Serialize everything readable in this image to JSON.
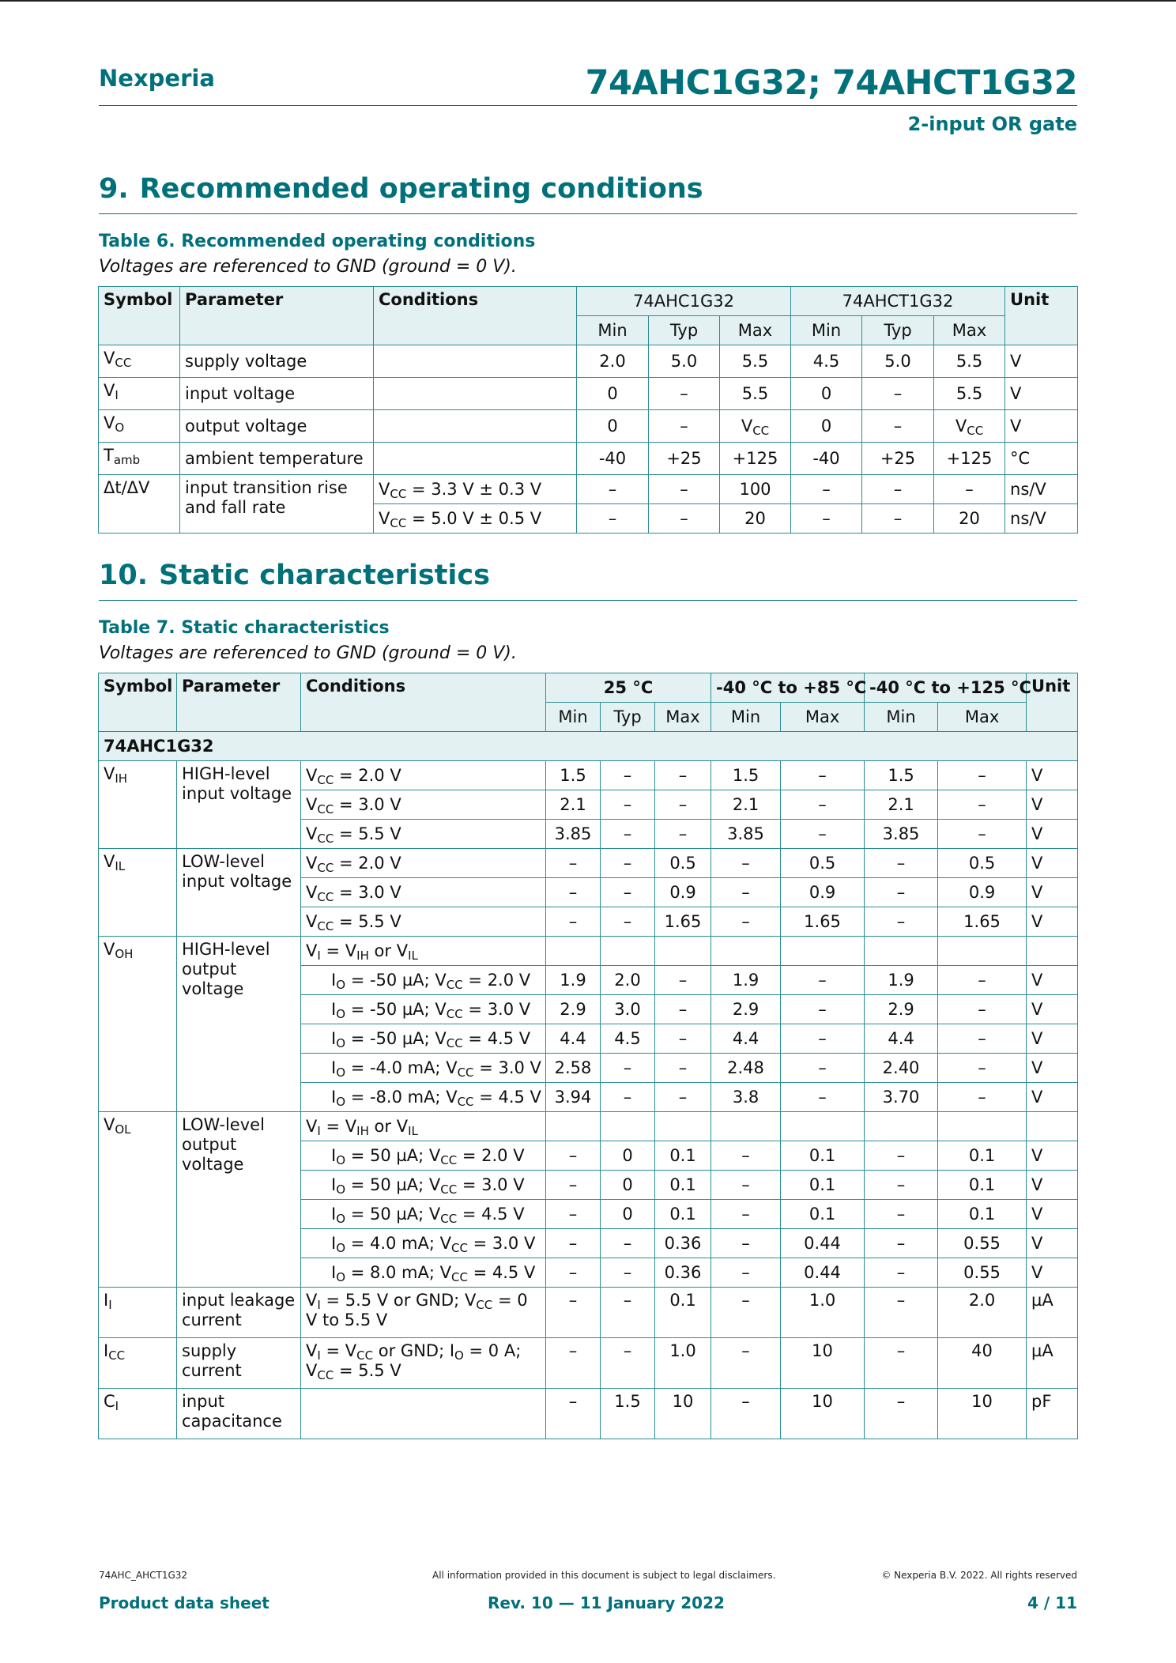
{
  "header": {
    "brand": "Nexperia",
    "title": "74AHC1G32; 74AHCT1G32",
    "subtitle": "2-input OR gate"
  },
  "section9": {
    "number": "9.",
    "title": "Recommended operating conditions",
    "caption": "Table 6. Recommended operating conditions",
    "note": "Voltages are referenced to GND (ground = 0 V).",
    "head": {
      "symbol": "Symbol",
      "parameter": "Parameter",
      "conditions": "Conditions",
      "grp1": "74AHC1G32",
      "grp2": "74AHCT1G32",
      "unit": "Unit",
      "min": "Min",
      "typ": "Typ",
      "max": "Max"
    },
    "rows": [
      {
        "sym": "V",
        "sub": "CC",
        "param": "supply voltage",
        "v": [
          "2.0",
          "5.0",
          "5.5",
          "4.5",
          "5.0",
          "5.5"
        ],
        "unit": "V"
      },
      {
        "sym": "V",
        "sub": "I",
        "param": "input voltage",
        "v": [
          "0",
          "–",
          "5.5",
          "0",
          "–",
          "5.5"
        ],
        "unit": "V"
      },
      {
        "sym": "V",
        "sub": "O",
        "param": "output voltage",
        "v": [
          "0",
          "–",
          "V_CC",
          "0",
          "–",
          "V_CC"
        ],
        "unit": "V"
      },
      {
        "sym": "T",
        "sub": "amb",
        "param": "ambient temperature",
        "v": [
          "-40",
          "+25",
          "+125",
          "-40",
          "+25",
          "+125"
        ],
        "unit": "°C"
      },
      {
        "sym": "Δt/ΔV",
        "sub": "",
        "param": "input transition rise and fall rate",
        "cond": "V_CC = 3.3 V ± 0.3 V",
        "v": [
          "–",
          "–",
          "100",
          "–",
          "–",
          "–"
        ],
        "unit": "ns/V"
      },
      {
        "cond": "V_CC = 5.0 V ± 0.5 V",
        "v": [
          "–",
          "–",
          "20",
          "–",
          "–",
          "20"
        ],
        "unit": "ns/V"
      }
    ]
  },
  "section10": {
    "number": "10.",
    "title": "Static characteristics",
    "caption": "Table 7. Static characteristics",
    "note": "Voltages are referenced to GND (ground = 0 V).",
    "head": {
      "symbol": "Symbol",
      "parameter": "Parameter",
      "conditions": "Conditions",
      "grp1": "25 °C",
      "grp2": "-40 °C to +85 °C",
      "grp3": "-40 °C to +125 °C",
      "unit": "Unit",
      "min": "Min",
      "typ": "Typ",
      "max": "Max"
    },
    "group_label": "74AHC1G32",
    "rows": [
      {
        "sym": "V_IH",
        "param": "HIGH-level input voltage",
        "cond": "V_CC = 2.0 V",
        "v": [
          "1.5",
          "–",
          "–",
          "1.5",
          "–",
          "1.5",
          "–"
        ],
        "unit": "V"
      },
      {
        "cond": "V_CC = 3.0 V",
        "v": [
          "2.1",
          "–",
          "–",
          "2.1",
          "–",
          "2.1",
          "–"
        ],
        "unit": "V"
      },
      {
        "cond": "V_CC = 5.5 V",
        "v": [
          "3.85",
          "–",
          "–",
          "3.85",
          "–",
          "3.85",
          "–"
        ],
        "unit": "V"
      },
      {
        "sym": "V_IL",
        "param": "LOW-level input voltage",
        "cond": "V_CC = 2.0 V",
        "v": [
          "–",
          "–",
          "0.5",
          "–",
          "0.5",
          "–",
          "0.5"
        ],
        "unit": "V"
      },
      {
        "cond": "V_CC = 3.0 V",
        "v": [
          "–",
          "–",
          "0.9",
          "–",
          "0.9",
          "–",
          "0.9"
        ],
        "unit": "V"
      },
      {
        "cond": "V_CC = 5.5 V",
        "v": [
          "–",
          "–",
          "1.65",
          "–",
          "1.65",
          "–",
          "1.65"
        ],
        "unit": "V"
      },
      {
        "sym": "V_OH",
        "param": "HIGH-level output voltage",
        "cond": "V_I = V_IH or V_IL",
        "v": [
          "",
          "",
          "",
          "",
          "",
          "",
          ""
        ],
        "unit": ""
      },
      {
        "cond": "I_O = -50 µA; V_CC = 2.0 V",
        "v": [
          "1.9",
          "2.0",
          "–",
          "1.9",
          "–",
          "1.9",
          "–"
        ],
        "unit": "V"
      },
      {
        "cond": "I_O = -50 µA; V_CC = 3.0 V",
        "v": [
          "2.9",
          "3.0",
          "–",
          "2.9",
          "–",
          "2.9",
          "–"
        ],
        "unit": "V"
      },
      {
        "cond": "I_O = -50 µA; V_CC = 4.5 V",
        "v": [
          "4.4",
          "4.5",
          "–",
          "4.4",
          "–",
          "4.4",
          "–"
        ],
        "unit": "V"
      },
      {
        "cond": "I_O = -4.0 mA; V_CC = 3.0 V",
        "v": [
          "2.58",
          "–",
          "–",
          "2.48",
          "–",
          "2.40",
          "–"
        ],
        "unit": "V"
      },
      {
        "cond": "I_O = -8.0 mA; V_CC = 4.5 V",
        "v": [
          "3.94",
          "–",
          "–",
          "3.8",
          "–",
          "3.70",
          "–"
        ],
        "unit": "V"
      },
      {
        "sym": "V_OL",
        "param": "LOW-level output voltage",
        "cond": "V_I = V_IH or V_IL",
        "v": [
          "",
          "",
          "",
          "",
          "",
          "",
          ""
        ],
        "unit": ""
      },
      {
        "cond": "I_O = 50 µA; V_CC = 2.0 V",
        "v": [
          "–",
          "0",
          "0.1",
          "–",
          "0.1",
          "–",
          "0.1"
        ],
        "unit": "V"
      },
      {
        "cond": "I_O = 50 µA; V_CC = 3.0 V",
        "v": [
          "–",
          "0",
          "0.1",
          "–",
          "0.1",
          "–",
          "0.1"
        ],
        "unit": "V"
      },
      {
        "cond": "I_O = 50 µA; V_CC = 4.5 V",
        "v": [
          "–",
          "0",
          "0.1",
          "–",
          "0.1",
          "–",
          "0.1"
        ],
        "unit": "V"
      },
      {
        "cond": "I_O = 4.0 mA; V_CC = 3.0 V",
        "v": [
          "–",
          "–",
          "0.36",
          "–",
          "0.44",
          "–",
          "0.55"
        ],
        "unit": "V"
      },
      {
        "cond": "I_O = 8.0 mA; V_CC = 4.5 V",
        "v": [
          "–",
          "–",
          "0.36",
          "–",
          "0.44",
          "–",
          "0.55"
        ],
        "unit": "V"
      },
      {
        "sym": "I_I",
        "param": "input leakage current",
        "cond": "V_I = 5.5 V or GND; V_CC = 0 V to 5.5 V",
        "v": [
          "–",
          "–",
          "0.1",
          "–",
          "1.0",
          "–",
          "2.0"
        ],
        "unit": "µA"
      },
      {
        "sym": "I_CC",
        "param": "supply current",
        "cond": "V_I = V_CC or GND; I_O = 0 A; V_CC = 5.5 V",
        "v": [
          "–",
          "–",
          "1.0",
          "–",
          "10",
          "–",
          "40"
        ],
        "unit": "µA"
      },
      {
        "sym": "C_I",
        "param": "input capacitance",
        "cond": "",
        "v": [
          "–",
          "1.5",
          "10",
          "–",
          "10",
          "–",
          "10"
        ],
        "unit": "pF"
      }
    ]
  },
  "footer": {
    "doc_id": "74AHC_AHCT1G32",
    "disclaimer": "All information provided in this document is subject to legal disclaimers.",
    "copyright": "© Nexperia B.V. 2022. All rights reserved",
    "doc_type": "Product data sheet",
    "revision": "Rev. 10 — 11 January 2022",
    "page": "4 / 11"
  },
  "colors": {
    "accent": "#00707a",
    "table_header_bg": "#e3f1f2",
    "table_border": "#2a8d94"
  }
}
